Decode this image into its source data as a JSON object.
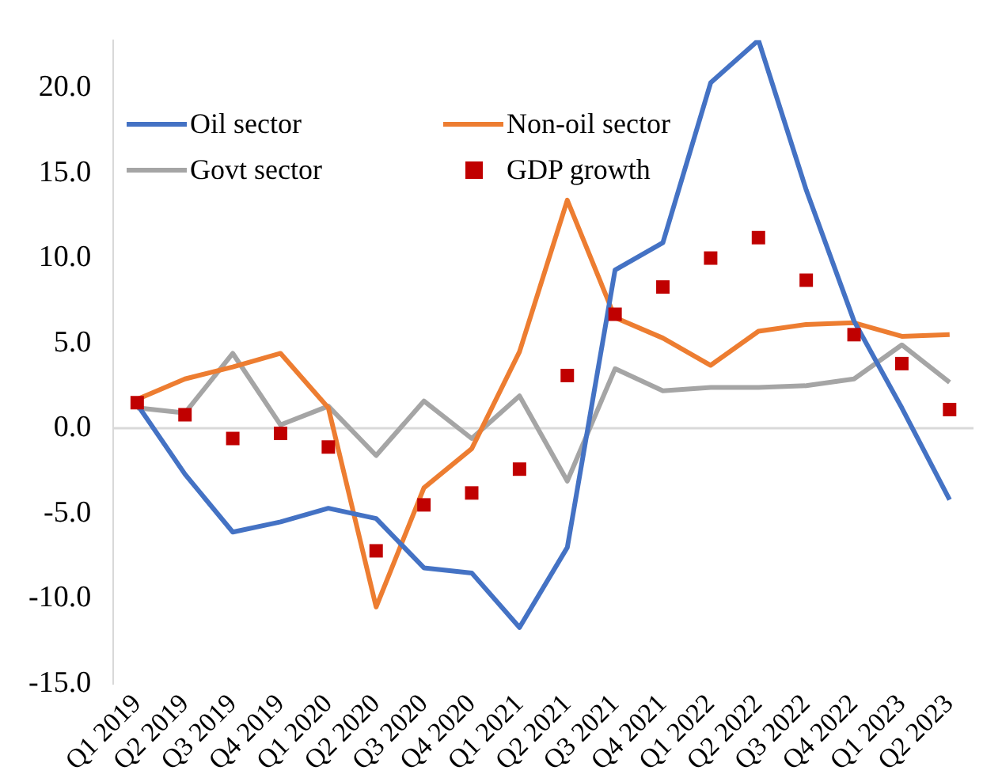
{
  "chart_data": {
    "type": "line",
    "categories": [
      "Q1 2019",
      "Q2 2019",
      "Q3 2019",
      "Q4 2019",
      "Q1 2020",
      "Q2 2020",
      "Q3 2020",
      "Q4 2020",
      "Q1 2021",
      "Q2 2021",
      "Q3 2021",
      "Q4 2021",
      "Q1 2022",
      "Q2 2022",
      "Q3 2022",
      "Q4 2022",
      "Q1 2023",
      "Q2 2023"
    ],
    "series": [
      {
        "name": "Oil sector",
        "color": "#4472c4",
        "values": [
          1.4,
          -2.7,
          -6.1,
          -5.5,
          -4.7,
          -5.3,
          -8.2,
          -8.5,
          -11.7,
          -7.0,
          9.3,
          10.9,
          20.3,
          22.8,
          14.0,
          6.3,
          1.2,
          -4.2
        ]
      },
      {
        "name": "Non-oil sector",
        "color": "#ed7d31",
        "values": [
          1.7,
          2.9,
          3.6,
          4.4,
          1.2,
          -10.5,
          -3.5,
          -1.2,
          4.5,
          13.4,
          6.5,
          5.3,
          3.7,
          5.7,
          6.1,
          6.2,
          5.4,
          5.5
        ]
      },
      {
        "name": "Govt sector",
        "color": "#a5a5a5",
        "values": [
          1.2,
          0.9,
          4.4,
          0.2,
          1.3,
          -1.6,
          1.6,
          -0.6,
          1.9,
          -3.1,
          3.5,
          2.2,
          2.4,
          2.4,
          2.5,
          2.9,
          4.9,
          2.7
        ]
      },
      {
        "name": "GDP growth",
        "color": "#c00000",
        "type": "scatter",
        "marker": "square",
        "values": [
          1.5,
          0.8,
          -0.6,
          -0.3,
          -1.1,
          -7.2,
          -4.5,
          -3.8,
          -2.4,
          3.1,
          6.7,
          8.3,
          10.0,
          11.2,
          8.7,
          5.5,
          3.8,
          1.1
        ]
      }
    ],
    "ylim": [
      -15,
      22.8
    ],
    "yticks": [
      {
        "value": -15,
        "label": "-15.0"
      },
      {
        "value": -10,
        "label": "-10.0"
      },
      {
        "value": -5,
        "label": "-5.0"
      },
      {
        "value": 0,
        "label": "0.0"
      },
      {
        "value": 5,
        "label": "5.0"
      },
      {
        "value": 10,
        "label": "10.0"
      },
      {
        "value": 15,
        "label": "15.0"
      },
      {
        "value": 20,
        "label": "20.0"
      }
    ],
    "ref_lines": [
      {
        "axis": "y",
        "value": 0,
        "color": "#d9d9d9"
      }
    ],
    "grid": false,
    "legend": "top left",
    "marker": "none",
    "line_style": "solid"
  }
}
